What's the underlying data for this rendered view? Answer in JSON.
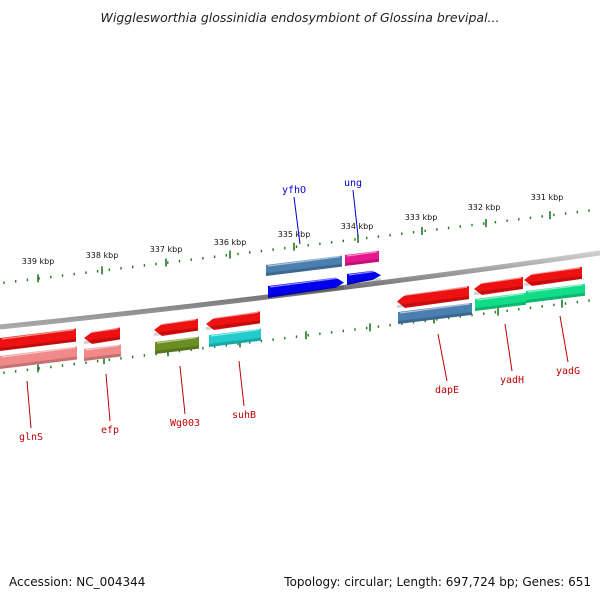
{
  "title": "Wigglesworthia glossinidia endosymbiont of Glossina brevipal...",
  "footer": {
    "accession": "Accession: NC_004344",
    "summary": "Topology: circular; Length: 697,724 bp; Genes: 651"
  },
  "scale": {
    "labels": [
      "339 kbp",
      "338 kbp",
      "337 kbp",
      "336 kbp",
      "335 kbp",
      "334 kbp",
      "333 kbp",
      "332 kbp",
      "331 kbp"
    ]
  },
  "genes": [
    {
      "name": "glnS",
      "strand": "lower",
      "color": "#c00000"
    },
    {
      "name": "efp",
      "strand": "lower",
      "color": "#c00000"
    },
    {
      "name": "Wg003",
      "strand": "lower",
      "color": "#c00000"
    },
    {
      "name": "suhB",
      "strand": "lower",
      "color": "#c00000"
    },
    {
      "name": "yfhO",
      "strand": "upper",
      "color": "#0000cc"
    },
    {
      "name": "ung",
      "strand": "upper",
      "color": "#0000cc"
    },
    {
      "name": "dapE",
      "strand": "lower",
      "color": "#c00000"
    },
    {
      "name": "yadH",
      "strand": "lower",
      "color": "#c00000"
    },
    {
      "name": "yadG",
      "strand": "lower",
      "color": "#c00000"
    }
  ],
  "colors": {
    "backbone": "#888888",
    "tick": "#1f7a1f",
    "red_feature": "#ee1111",
    "pink_feature": "#f08a8a",
    "blue_feature": "#0000ee",
    "steel_feature": "#4a7fb0",
    "magenta_feature": "#e8178f",
    "olive_feature": "#6b8e23",
    "cyan_feature": "#22cccc",
    "green_feature": "#11dd88"
  }
}
